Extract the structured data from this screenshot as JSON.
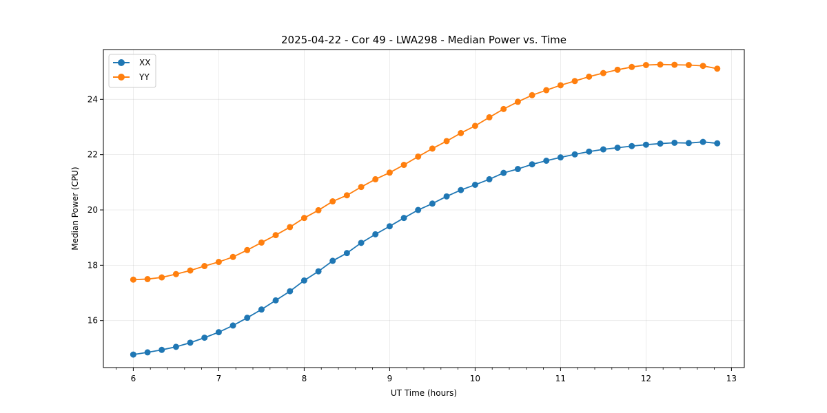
{
  "chart_data": {
    "type": "line",
    "title": "2025-04-22 - Cor 49 - LWA298 - Median Power vs. Time",
    "xlabel": "UT Time (hours)",
    "ylabel": "Median Power (CPU)",
    "xlim": [
      5.65,
      13.15
    ],
    "ylim": [
      14.3,
      25.8
    ],
    "xticks": [
      6,
      7,
      8,
      9,
      10,
      11,
      12,
      13
    ],
    "xtick_labels": [
      "6",
      "7",
      "8",
      "9",
      "10",
      "11",
      "12",
      "13"
    ],
    "yticks": [
      16,
      18,
      20,
      22,
      24
    ],
    "ytick_labels": [
      "16",
      "18",
      "20",
      "22",
      "24"
    ],
    "grid": true,
    "legend_position": "top-left",
    "x": [
      6.0,
      6.1667,
      6.3333,
      6.5,
      6.6667,
      6.8333,
      7.0,
      7.1667,
      7.3333,
      7.5,
      7.6667,
      7.8333,
      8.0,
      8.1667,
      8.3333,
      8.5,
      8.6667,
      8.8333,
      9.0,
      9.1667,
      9.3333,
      9.5,
      9.6667,
      9.8333,
      10.0,
      10.1667,
      10.3333,
      10.5,
      10.6667,
      10.8333,
      11.0,
      11.1667,
      11.3333,
      11.5,
      11.6667,
      11.8333,
      12.0,
      12.1667,
      12.3333,
      12.5,
      12.6667,
      12.8333
    ],
    "series": [
      {
        "name": "XX",
        "color": "#1f77b4",
        "values": [
          14.77,
          14.85,
          14.94,
          15.05,
          15.2,
          15.38,
          15.58,
          15.82,
          16.1,
          16.4,
          16.73,
          17.06,
          17.45,
          17.78,
          18.16,
          18.44,
          18.81,
          19.12,
          19.41,
          19.71,
          20.0,
          20.23,
          20.49,
          20.72,
          20.91,
          21.11,
          21.34,
          21.48,
          21.65,
          21.78,
          21.9,
          22.01,
          22.11,
          22.19,
          22.25,
          22.31,
          22.36,
          22.4,
          22.43,
          22.42,
          22.46,
          22.41
        ]
      },
      {
        "name": "YY",
        "color": "#ff7f0e",
        "values": [
          17.48,
          17.5,
          17.56,
          17.68,
          17.81,
          17.97,
          18.12,
          18.3,
          18.55,
          18.82,
          19.09,
          19.38,
          19.71,
          19.99,
          20.31,
          20.53,
          20.83,
          21.11,
          21.35,
          21.63,
          21.93,
          22.22,
          22.49,
          22.78,
          23.04,
          23.35,
          23.65,
          23.91,
          24.15,
          24.33,
          24.51,
          24.66,
          24.82,
          24.95,
          25.07,
          25.17,
          25.24,
          25.26,
          25.25,
          25.24,
          25.21,
          25.11
        ]
      }
    ]
  }
}
